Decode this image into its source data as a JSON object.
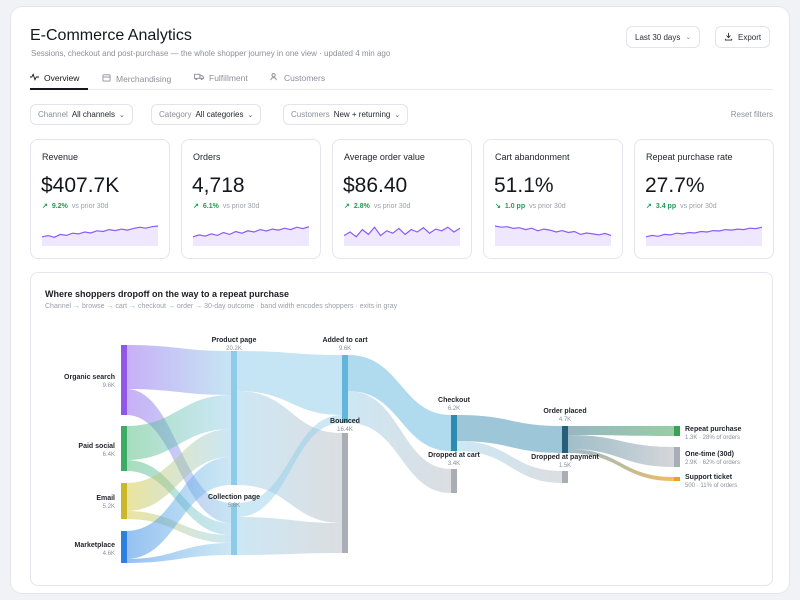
{
  "header": {
    "title": "E-Commerce Analytics",
    "subtitle": "Sessions, checkout and post-purchase — the whole shopper journey in one view · updated 4 min ago",
    "range_label": "Last 30 days",
    "export_label": "Export"
  },
  "tabs": [
    {
      "label": "Overview",
      "icon": "activity-icon"
    },
    {
      "label": "Merchandising",
      "icon": "calendar-icon"
    },
    {
      "label": "Fulfillment",
      "icon": "truck-icon"
    },
    {
      "label": "Customers",
      "icon": "users-icon"
    }
  ],
  "filters": [
    {
      "label": "Channel",
      "value": "All channels"
    },
    {
      "label": "Category",
      "value": "All categories"
    },
    {
      "label": "Customers",
      "value": "New + returning"
    }
  ],
  "reset_label": "Reset filters",
  "kpis": [
    {
      "label": "Revenue",
      "value": "$407.7K",
      "delta": "9.2%",
      "prior": "vs prior 30d",
      "direction": "up"
    },
    {
      "label": "Orders",
      "value": "4,718",
      "delta": "6.1%",
      "prior": "vs prior 30d",
      "direction": "up"
    },
    {
      "label": "Average order value",
      "value": "$86.40",
      "delta": "2.8%",
      "prior": "vs prior 30d",
      "direction": "up"
    },
    {
      "label": "Cart abandonment",
      "value": "51.1%",
      "delta": "1.0 pp",
      "prior": "vs prior 30d",
      "direction": "down"
    },
    {
      "label": "Repeat purchase rate",
      "value": "27.7%",
      "delta": "3.4 pp",
      "prior": "vs prior 30d",
      "direction": "up"
    }
  ],
  "sparklines": [
    [
      0.3,
      0.35,
      0.28,
      0.4,
      0.36,
      0.45,
      0.42,
      0.5,
      0.46,
      0.55,
      0.52,
      0.6,
      0.56,
      0.62,
      0.58,
      0.65,
      0.7,
      0.66,
      0.72,
      0.75
    ],
    [
      0.3,
      0.38,
      0.33,
      0.42,
      0.36,
      0.48,
      0.4,
      0.52,
      0.45,
      0.55,
      0.5,
      0.6,
      0.54,
      0.62,
      0.58,
      0.66,
      0.6,
      0.7,
      0.64,
      0.72
    ],
    [
      0.35,
      0.5,
      0.3,
      0.6,
      0.4,
      0.7,
      0.35,
      0.55,
      0.45,
      0.65,
      0.4,
      0.6,
      0.5,
      0.68,
      0.45,
      0.62,
      0.55,
      0.7,
      0.5,
      0.66
    ],
    [
      0.75,
      0.7,
      0.72,
      0.65,
      0.68,
      0.6,
      0.66,
      0.55,
      0.62,
      0.58,
      0.5,
      0.56,
      0.48,
      0.52,
      0.4,
      0.46,
      0.42,
      0.38,
      0.44,
      0.36
    ],
    [
      0.3,
      0.36,
      0.32,
      0.4,
      0.38,
      0.45,
      0.42,
      0.48,
      0.46,
      0.52,
      0.5,
      0.56,
      0.54,
      0.6,
      0.58,
      0.62,
      0.6,
      0.66,
      0.64,
      0.7
    ]
  ],
  "colors": {
    "accent": "#8b5cf6",
    "positive": "#1f9d55",
    "negative": "#1f9d55"
  },
  "flow": {
    "title": "Where shoppers dropoff on the way to a repeat purchase",
    "subtitle": "Channel → browse → cart → checkout → order → 30-day outcome · band width encodes shoppers · exits in gray",
    "nodes": {
      "organic": {
        "label": "Organic search",
        "value": "9.6K"
      },
      "paid": {
        "label": "Paid social",
        "value": "6.4K"
      },
      "email": {
        "label": "Email",
        "value": "5.2K"
      },
      "market": {
        "label": "Marketplace",
        "value": "4.6K"
      },
      "product": {
        "label": "Product page",
        "value": "20.2K"
      },
      "collection": {
        "label": "Collection page",
        "value": "5.6K"
      },
      "cart": {
        "label": "Added to cart",
        "value": "9.6K"
      },
      "bounced": {
        "label": "Bounced",
        "value": "16.4K"
      },
      "checkout": {
        "label": "Checkout",
        "value": "6.2K"
      },
      "dropcart": {
        "label": "Dropped at cart",
        "value": "3.4K"
      },
      "order": {
        "label": "Order placed",
        "value": "4.7K"
      },
      "droppay": {
        "label": "Dropped at payment",
        "value": "1.5K"
      },
      "repeat": {
        "label": "Repeat purchase",
        "value": "1.3K · 28% of orders"
      },
      "onetime": {
        "label": "One-time (30d)",
        "value": "2.9K · 62% of orders"
      },
      "support": {
        "label": "Support ticket",
        "value": "500 · 11% of orders"
      }
    }
  }
}
